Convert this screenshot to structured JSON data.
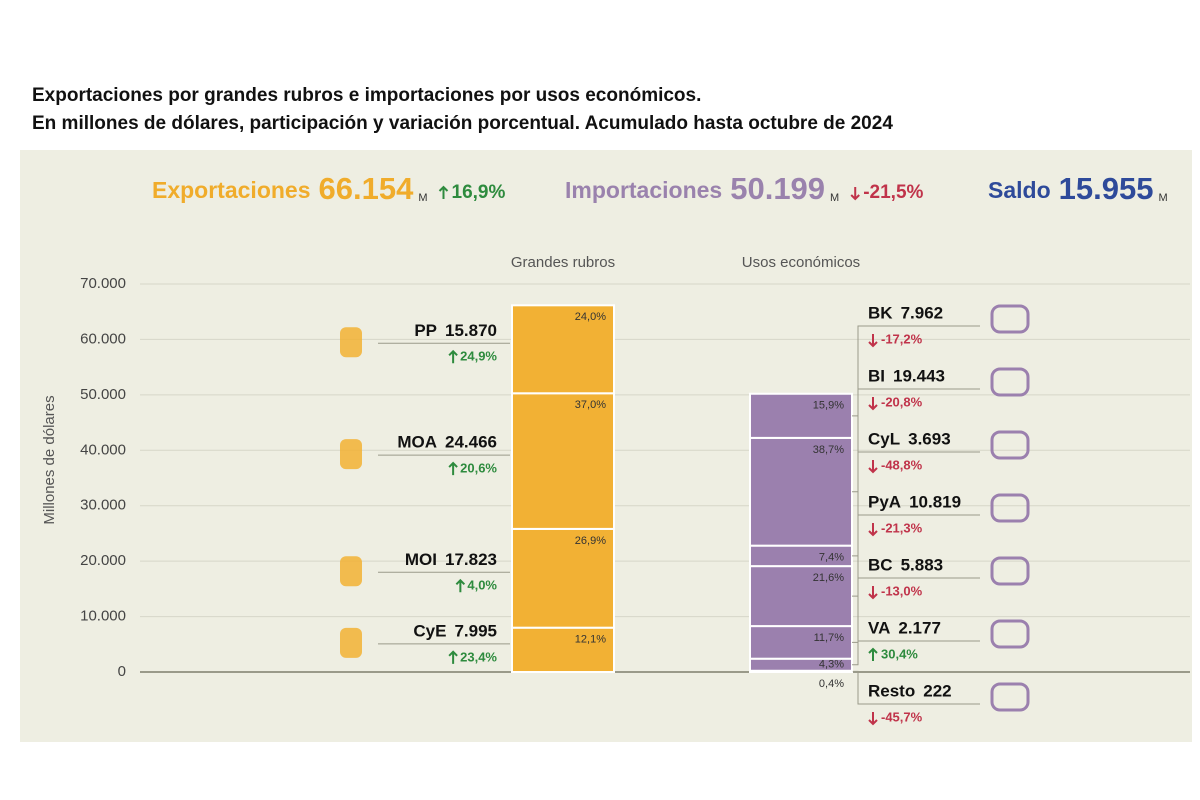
{
  "chart_data": {
    "type": "stacked_bar",
    "title": "Exportaciones por grandes rubros e importaciones por usos económicos.",
    "subtitle": "En millones de dólares, participación y variación porcentual. Acumulado hasta octubre de 2024",
    "summary": [
      {
        "name": "Exportaciones",
        "value": 66154,
        "value_label": "66.154",
        "unit": "M",
        "change": 16.9,
        "change_label": "16,9%",
        "color": "#f0ac2b"
      },
      {
        "name": "Importaciones",
        "value": 50199,
        "value_label": "50.199",
        "unit": "M",
        "change": -21.5,
        "change_label": "-21,5%",
        "color": "#9a82ad"
      },
      {
        "name": "Saldo",
        "value": 15955,
        "value_label": "15.955",
        "unit": "M",
        "color": "#2e4a9a"
      }
    ],
    "categories": [
      "Grandes rubros",
      "Usos económicos"
    ],
    "ylabel": "Millones de dólares",
    "ylim": [
      0,
      70000
    ],
    "yticks": [
      0,
      {
        "value": 10000,
        "label": "10.000"
      },
      {
        "value": 20000,
        "label": "20.000"
      },
      {
        "value": 30000,
        "label": "30.000"
      },
      {
        "value": 40000,
        "label": "40.000"
      },
      {
        "value": 50000,
        "label": "50.000"
      },
      {
        "value": 60000,
        "label": "60.000"
      },
      {
        "value": 70000,
        "label": "70.000"
      }
    ],
    "grid": true,
    "up_color": "#2e8b3e",
    "down_color": "#c0334a",
    "stacks": [
      {
        "color": "#f2b134",
        "segments": [
          {
            "name": "CyE",
            "value": 7995,
            "value_label": "7.995",
            "share": 12.1,
            "share_label": "12,1%",
            "change": 23.4,
            "change_label": "23,4%"
          },
          {
            "name": "MOI",
            "value": 17823,
            "value_label": "17.823",
            "share": 26.9,
            "share_label": "26,9%",
            "change": 4.0,
            "change_label": "4,0%"
          },
          {
            "name": "MOA",
            "value": 24466,
            "value_label": "24.466",
            "share": 37.0,
            "share_label": "37,0%",
            "change": 20.6,
            "change_label": "20,6%"
          },
          {
            "name": "PP",
            "value": 15870,
            "value_label": "15.870",
            "share": 24.0,
            "share_label": "24,0%",
            "change": 24.9,
            "change_label": "24,9%"
          }
        ]
      },
      {
        "color": "#9b80ae",
        "segments": [
          {
            "name": "Resto",
            "value": 222,
            "share": 0.4,
            "share_label": "0,4%",
            "change": -45.7,
            "change_label": "-45,7%"
          },
          {
            "name": "VA",
            "value": 2177,
            "value_label": "2.177",
            "share": 4.3,
            "share_label": "4,3%",
            "change": 30.4,
            "change_label": "30,4%"
          },
          {
            "name": "BC",
            "value": 5883,
            "value_label": "5.883",
            "share": 11.7,
            "share_label": "11,7%",
            "change": -13.0,
            "change_label": "-13,0%"
          },
          {
            "name": "PyA",
            "value": 10819,
            "value_label": "10.819",
            "share": 21.6,
            "share_label": "21,6%",
            "change": -21.3,
            "change_label": "-21,3%"
          },
          {
            "name": "CyL",
            "value": 3693,
            "value_label": "3.693",
            "share": 7.4,
            "share_label": "7,4%",
            "change": -48.8,
            "change_label": "-48,8%"
          },
          {
            "name": "BI",
            "value": 19443,
            "value_label": "19.443",
            "share": 38.7,
            "share_label": "38,7%",
            "change": -20.8,
            "change_label": "-20,8%"
          },
          {
            "name": "BK",
            "value": 7962,
            "value_label": "7.962",
            "share": 15.9,
            "share_label": "15,9%",
            "change": -17.2,
            "change_label": "-17,2%"
          }
        ]
      }
    ]
  }
}
